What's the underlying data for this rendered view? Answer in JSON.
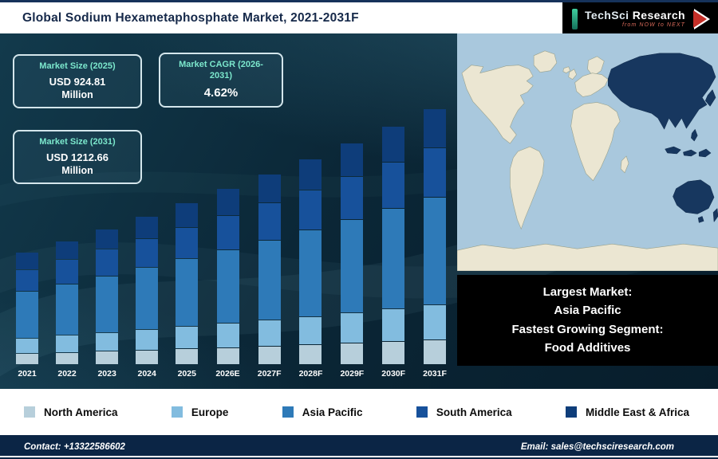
{
  "header": {
    "title": "Global Sodium Hexametaphosphate Market, 2021-2031F",
    "logo": {
      "brand_primary": "TechSci",
      "brand_secondary": "Research",
      "tagline": "from NOW to NEXT"
    }
  },
  "stat_boxes": [
    {
      "label": "Market Size (2025)",
      "value": "USD 924.81",
      "unit": "Million"
    },
    {
      "label": "Market CAGR (2026-2031)",
      "value": "4.62%",
      "unit": ""
    },
    {
      "label": "Market Size (2031)",
      "value": "USD 1212.66",
      "unit": "Million"
    }
  ],
  "chart_data": {
    "type": "stacked-bar",
    "title": "Global Sodium Hexametaphosphate Market, 2021-2031F",
    "unit": "USD Million",
    "xlabel": "",
    "ylabel": "",
    "grid": false,
    "legend_position": "bottom",
    "categories": [
      "2021",
      "2022",
      "2023",
      "2024",
      "2025",
      "2026E",
      "2027F",
      "2028F",
      "2029F",
      "2030F",
      "2031F"
    ],
    "series": [
      {
        "name": "North America",
        "color": "#b7cfdb",
        "values": [
          73.3,
          76.7,
          80.3,
          84.0,
          87.9,
          91.9,
          96.2,
          100.6,
          105.3,
          110.1,
          115.2
        ]
      },
      {
        "name": "Europe",
        "color": "#82bcdf",
        "values": [
          104.2,
          109.0,
          114.1,
          119.3,
          124.8,
          130.6,
          136.7,
          143.0,
          149.6,
          156.5,
          163.7
        ]
      },
      {
        "name": "Asia Pacific",
        "color": "#2e7ab8",
        "values": [
          328.1,
          343.2,
          359.1,
          375.7,
          393.0,
          411.2,
          430.2,
          450.1,
          470.9,
          492.6,
          515.4
        ]
      },
      {
        "name": "South America",
        "color": "#17519b",
        "values": [
          150.5,
          157.5,
          164.8,
          172.4,
          180.3,
          188.7,
          197.4,
          206.5,
          216.0,
          226.0,
          236.5
        ]
      },
      {
        "name": "Middle East & Africa",
        "color": "#0e3d7a",
        "values": [
          115.8,
          121.1,
          126.7,
          132.6,
          138.7,
          145.1,
          151.8,
          158.9,
          166.2,
          173.9,
          181.9
        ]
      }
    ],
    "totals": [
      771.96,
      807.62,
      844.93,
      883.97,
      924.81,
      967.54,
      1012.24,
      1059.01,
      1107.93,
      1159.12,
      1212.66
    ],
    "ylim": [
      430,
      1250
    ]
  },
  "map_panel": {
    "highlight_region": "Asia Pacific",
    "ocean_color": "#a9c8dd",
    "land_color": "#ebe6d2",
    "highlight_color": "#17375f"
  },
  "info_panel": {
    "lines": [
      "Largest Market:",
      "Asia Pacific",
      "Fastest Growing Segment:",
      "Food Additives"
    ]
  },
  "footer": {
    "contact": "Contact: +13322586602",
    "email": "Email: sales@techsciresearch.com"
  },
  "colors": {
    "accent_teal": "#7ce8cd",
    "background_dark": "#0b2737",
    "footer_bg": "#0b2545",
    "logo_arrow_red": "#c62f28"
  }
}
